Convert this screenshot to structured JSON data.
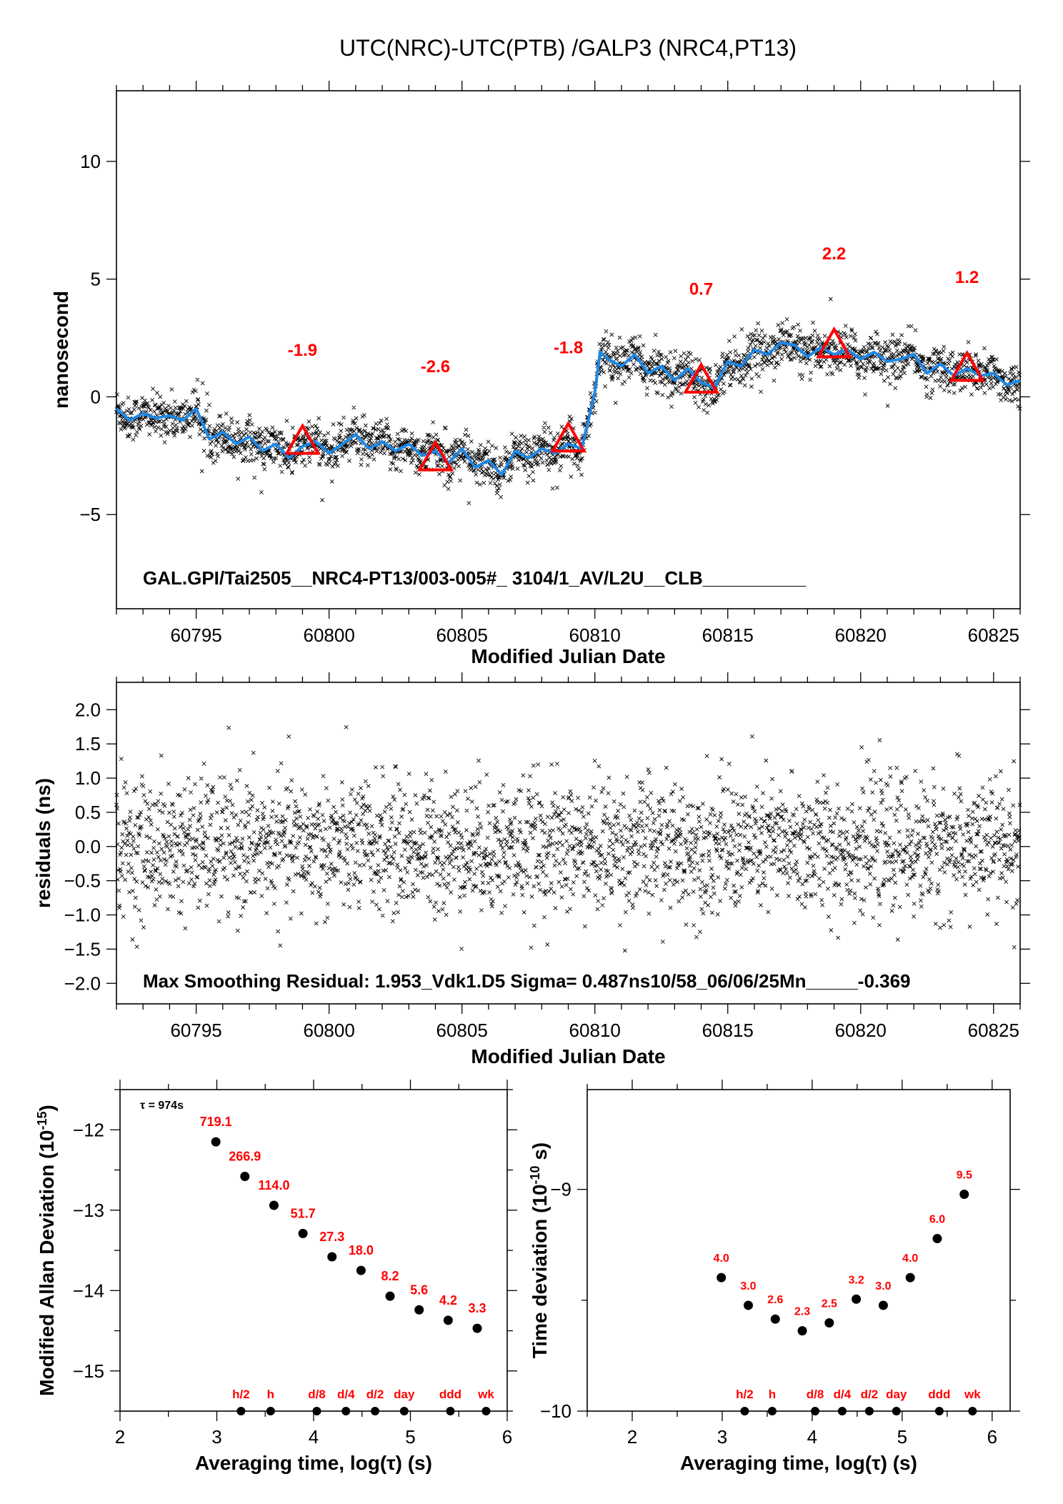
{
  "title": "UTC(NRC)-UTC(PTB)  /GALP3  (NRC4,PT13)",
  "colors": {
    "smooth_line": "#1e88e5",
    "markers": "#ff0000",
    "labels_red": "#ff0000",
    "scatter": "#000000"
  },
  "chart_data": [
    {
      "id": "main",
      "type": "scatter",
      "xlabel": "Modified Julian Date",
      "ylabel": "nanosecond",
      "xlim": [
        60792,
        60826
      ],
      "ylim": [
        -9,
        13
      ],
      "xticks": [
        60795,
        60800,
        60805,
        60810,
        60815,
        60820,
        60825
      ],
      "yticks": [
        -5,
        0,
        5,
        10
      ],
      "ytick_labels": [
        "−5",
        "0",
        "5",
        "10"
      ],
      "info_text": "GAL.GPI/Tai2505__NRC4-PT13/003-005#_  3104/1_AV/L2U__CLB__________",
      "smooth_curve": {
        "x": [
          60792,
          60792.5,
          60793,
          60793.5,
          60794,
          60794.5,
          60795,
          60795.5,
          60796,
          60796.5,
          60797,
          60797.5,
          60798,
          60798.5,
          60799,
          60799.5,
          60800,
          60800.5,
          60801,
          60801.5,
          60802,
          60802.5,
          60803,
          60803.5,
          60804,
          60804.5,
          60805,
          60805.5,
          60806,
          60806.5,
          60807,
          60807.5,
          60808,
          60808.5,
          60809,
          60809.5,
          60810,
          60810.2,
          60810.5,
          60811,
          60811.5,
          60812,
          60812.5,
          60813,
          60813.5,
          60814,
          60814.5,
          60815,
          60815.5,
          60816,
          60816.5,
          60817,
          60817.5,
          60818,
          60818.5,
          60819,
          60819.5,
          60820,
          60820.5,
          60821,
          60821.5,
          60822,
          60822.5,
          60823,
          60823.5,
          60824,
          60824.5,
          60825,
          60825.5,
          60826
        ],
        "y": [
          -0.5,
          -1.0,
          -0.7,
          -0.9,
          -0.8,
          -1.0,
          -0.5,
          -1.8,
          -1.5,
          -2.0,
          -1.7,
          -2.3,
          -2.0,
          -2.6,
          -2.1,
          -1.9,
          -2.4,
          -2.0,
          -1.6,
          -2.2,
          -1.9,
          -2.3,
          -2.0,
          -2.5,
          -2.3,
          -2.8,
          -2.2,
          -3.0,
          -2.7,
          -3.3,
          -2.3,
          -2.6,
          -2.2,
          -2.4,
          -2.0,
          -2.2,
          0.2,
          1.9,
          1.6,
          1.3,
          1.8,
          1.0,
          1.3,
          0.7,
          1.2,
          0.6,
          0.4,
          1.5,
          1.3,
          2.0,
          1.8,
          2.3,
          2.2,
          1.7,
          2.1,
          1.8,
          2.0,
          1.6,
          1.9,
          1.5,
          1.6,
          1.8,
          1.0,
          1.4,
          0.9,
          1.2,
          0.9,
          1.0,
          0.5,
          0.7
        ]
      },
      "markers": [
        {
          "x": 60799,
          "y": -1.9,
          "label": "-1.9"
        },
        {
          "x": 60804,
          "y": -2.6,
          "label": "-2.6"
        },
        {
          "x": 60809,
          "y": -1.8,
          "label": "-1.8"
        },
        {
          "x": 60814,
          "y": 0.7,
          "label": "0.7"
        },
        {
          "x": 60819,
          "y": 2.2,
          "label": "2.2"
        },
        {
          "x": 60824,
          "y": 1.2,
          "label": "1.2"
        }
      ]
    },
    {
      "id": "residuals",
      "type": "scatter",
      "xlabel": "Modified Julian Date",
      "ylabel": "residuals (ns)",
      "xlim": [
        60792,
        60826
      ],
      "ylim": [
        -2.3,
        2.4
      ],
      "xticks": [
        60795,
        60800,
        60805,
        60810,
        60815,
        60820,
        60825
      ],
      "yticks": [
        -2.0,
        -1.5,
        -1.0,
        -0.5,
        0.0,
        0.5,
        1.0,
        1.5,
        2.0
      ],
      "ytick_labels": [
        "−2.0",
        "−1.5",
        "−1.0",
        "−0.5",
        "0.0",
        "0.5",
        "1.0",
        "1.5",
        "2.0"
      ],
      "info_text": "Max Smoothing Residual: 1.953_Vdk1.D5  Sigma= 0.487ns10/58_06/06/25Mn_____-0.369",
      "sigma": 0.487
    },
    {
      "id": "mdev",
      "type": "scatter",
      "xlabel": "Averaging time, log(τ) (s)",
      "ylabel": "Modified Allan Deviation (10",
      "ylabel_sup": "-15",
      "ylabel_end": ")",
      "xlim": [
        2,
        6
      ],
      "ylim": [
        -15.5,
        -11.5
      ],
      "xticks": [
        2,
        3,
        4,
        5,
        6
      ],
      "yticks": [
        -12,
        -13,
        -14,
        -15
      ],
      "ytick_labels": [
        "−12",
        "−13",
        "−14",
        "−15"
      ],
      "tau_note": "τ = 974s",
      "points": [
        {
          "x": 2.99,
          "y": -12.15,
          "label": "719.1"
        },
        {
          "x": 3.29,
          "y": -12.58,
          "label": "266.9"
        },
        {
          "x": 3.59,
          "y": -12.94,
          "label": "114.0"
        },
        {
          "x": 3.89,
          "y": -13.29,
          "label": "51.7"
        },
        {
          "x": 4.19,
          "y": -13.58,
          "label": "27.3"
        },
        {
          "x": 4.49,
          "y": -13.75,
          "label": "18.0"
        },
        {
          "x": 4.79,
          "y": -14.07,
          "label": "8.2"
        },
        {
          "x": 5.09,
          "y": -14.24,
          "label": "5.6"
        },
        {
          "x": 5.39,
          "y": -14.37,
          "label": "4.2"
        },
        {
          "x": 5.69,
          "y": -14.47,
          "label": "3.3"
        }
      ],
      "interval_markers": [
        {
          "x": 3.25,
          "label": "h/2"
        },
        {
          "x": 3.556,
          "label": "h"
        },
        {
          "x": 4.033,
          "label": "d/8"
        },
        {
          "x": 4.334,
          "label": "d/4"
        },
        {
          "x": 4.635,
          "label": "d/2"
        },
        {
          "x": 4.936,
          "label": "day"
        },
        {
          "x": 5.413,
          "label": "ddd"
        },
        {
          "x": 5.782,
          "label": "wk"
        }
      ]
    },
    {
      "id": "tdev",
      "type": "scatter",
      "xlabel": "Averaging time, log(τ) (s)",
      "ylabel": "Time deviation (10",
      "ylabel_sup": "-10",
      "ylabel_end": " s)",
      "xlim": [
        1.5,
        6.2
      ],
      "ylim": [
        -10,
        -8.55
      ],
      "xticks": [
        2,
        3,
        4,
        5,
        6
      ],
      "yticks": [
        -9,
        -10
      ],
      "ytick_labels": [
        "−9",
        "−10"
      ],
      "points": [
        {
          "x": 2.99,
          "y": -9.398,
          "label": "4.0"
        },
        {
          "x": 3.29,
          "y": -9.523,
          "label": "3.0"
        },
        {
          "x": 3.59,
          "y": -9.585,
          "label": "2.6"
        },
        {
          "x": 3.89,
          "y": -9.638,
          "label": "2.3"
        },
        {
          "x": 4.19,
          "y": -9.602,
          "label": "2.5"
        },
        {
          "x": 4.49,
          "y": -9.495,
          "label": "3.2"
        },
        {
          "x": 4.79,
          "y": -9.523,
          "label": "3.0"
        },
        {
          "x": 5.09,
          "y": -9.398,
          "label": "4.0"
        },
        {
          "x": 5.39,
          "y": -9.222,
          "label": "6.0"
        },
        {
          "x": 5.69,
          "y": -9.022,
          "label": "9.5"
        }
      ],
      "interval_markers": [
        {
          "x": 3.25,
          "label": "h/2"
        },
        {
          "x": 3.556,
          "label": "h"
        },
        {
          "x": 4.033,
          "label": "d/8"
        },
        {
          "x": 4.334,
          "label": "d/4"
        },
        {
          "x": 4.635,
          "label": "d/2"
        },
        {
          "x": 4.936,
          "label": "day"
        },
        {
          "x": 5.413,
          "label": "ddd"
        },
        {
          "x": 5.782,
          "label": "wk"
        }
      ]
    }
  ]
}
